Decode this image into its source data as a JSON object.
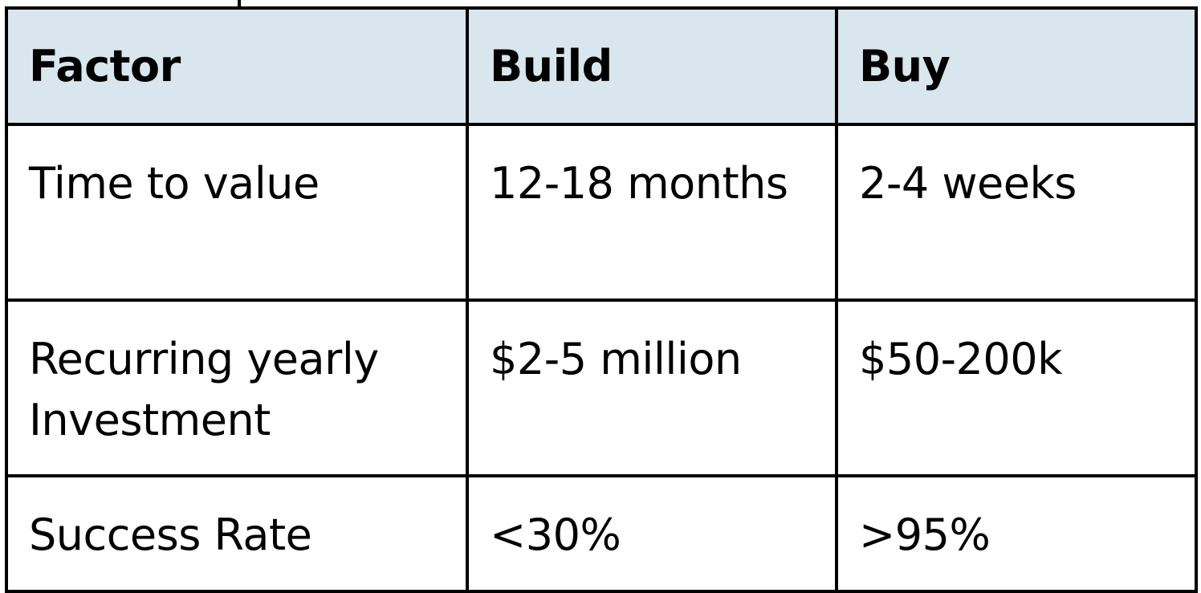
{
  "table": {
    "headers": [
      "Factor",
      "Build",
      "Buy"
    ],
    "rows": [
      [
        "Time to value",
        "12-18 months",
        "2-4 weeks"
      ],
      [
        "Recurring yearly Investment",
        "$2-5 million",
        "$50-200k"
      ],
      [
        "Success Rate",
        "<30%",
        ">95%"
      ]
    ]
  },
  "colors": {
    "header_background": "#dae6ed",
    "border": "#000000",
    "text": "#000000"
  }
}
